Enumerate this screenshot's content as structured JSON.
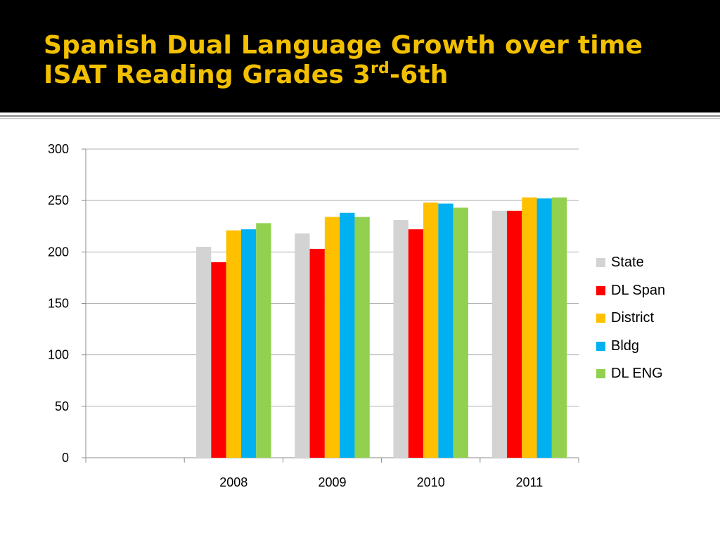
{
  "slide": {
    "title_line1": "Spanish Dual Language Growth over time",
    "title_line2_prefix": "ISAT Reading Grades 3",
    "title_line2_sup": "rd",
    "title_line2_suffix": "-6th"
  },
  "colors": {
    "title": "#f2c000",
    "title_band": "#000000"
  },
  "chart_data": {
    "type": "bar",
    "categories": [
      "",
      "2008",
      "2009",
      "2010",
      "2011"
    ],
    "series": [
      {
        "name": "State",
        "color": "#d3d3d3",
        "values": [
          null,
          205,
          218,
          231,
          240
        ]
      },
      {
        "name": "DL Span",
        "color": "#ff0000",
        "values": [
          null,
          190,
          203,
          222,
          240
        ]
      },
      {
        "name": "District",
        "color": "#ffc000",
        "values": [
          null,
          221,
          234,
          248,
          253
        ]
      },
      {
        "name": "Bldg",
        "color": "#00b0f0",
        "values": [
          null,
          222,
          238,
          247,
          252
        ]
      },
      {
        "name": "DL ENG",
        "color": "#92d050",
        "values": [
          null,
          228,
          234,
          243,
          253
        ]
      }
    ],
    "ylim": [
      0,
      300
    ],
    "yticks": [
      0,
      50,
      100,
      150,
      200,
      250,
      300
    ],
    "grid": true,
    "legend": "right"
  }
}
